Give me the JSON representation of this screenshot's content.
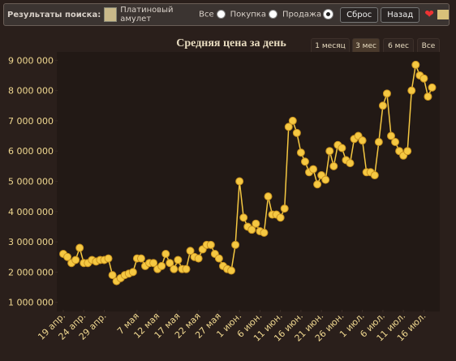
{
  "toolbar": {
    "label": "Результаты поиска:",
    "item": "Платиновый амулет",
    "filters": [
      {
        "label": "Все",
        "selected": false
      },
      {
        "label": "Покупка",
        "selected": false
      },
      {
        "label": "Продажа",
        "selected": true
      }
    ],
    "buttons": [
      "Сброс",
      "Назад"
    ]
  },
  "range_selector": {
    "buttons": [
      "1 месяц",
      "3 мес",
      "6 мес",
      "Все"
    ],
    "active": 1
  },
  "chart_data": {
    "type": "line",
    "title": "Средняя цена за день",
    "color": "#f5c842",
    "categories": [
      "19 апр.",
      null,
      null,
      null,
      null,
      "24 апр.",
      null,
      null,
      null,
      null,
      "29 апр.",
      null,
      null,
      null,
      null,
      null,
      null,
      null,
      "7 мая",
      null,
      null,
      null,
      null,
      "12 мая",
      null,
      null,
      null,
      null,
      "17 мая",
      null,
      null,
      null,
      null,
      "22 мая",
      null,
      null,
      null,
      null,
      "27 мая",
      null,
      null,
      null,
      null,
      "1 июн.",
      null,
      null,
      null,
      null,
      "6 июн.",
      null,
      null,
      null,
      null,
      "11 июн.",
      null,
      null,
      null,
      null,
      "16 июн.",
      null,
      null,
      null,
      null,
      "21 июн.",
      null,
      null,
      null,
      null,
      "26 июн.",
      null,
      null,
      null,
      null,
      "1 июл.",
      null,
      null,
      null,
      null,
      "6 июл.",
      null,
      null,
      null,
      null,
      "11 июл.",
      null,
      null,
      null,
      null,
      "16 июл.",
      null,
      null
    ],
    "values": [
      2600000,
      2500000,
      2300000,
      2400000,
      2800000,
      2300000,
      2300000,
      2400000,
      2350000,
      2400000,
      2400000,
      2450000,
      1900000,
      1700000,
      1800000,
      1900000,
      1950000,
      2000000,
      2450000,
      2450000,
      2200000,
      2300000,
      2300000,
      2100000,
      2200000,
      2600000,
      2300000,
      2100000,
      2400000,
      2100000,
      2100000,
      2700000,
      2500000,
      2450000,
      2750000,
      2900000,
      2900000,
      2600000,
      2450000,
      2200000,
      2100000,
      2050000,
      2900000,
      5000000,
      3800000,
      3500000,
      3400000,
      3600000,
      3350000,
      3300000,
      4500000,
      3900000,
      3900000,
      3800000,
      4100000,
      6800000,
      7000000,
      6600000,
      5950000,
      5650000,
      5300000,
      5400000,
      4900000,
      5200000,
      5050000,
      6000000,
      5500000,
      6200000,
      6100000,
      5700000,
      5600000,
      6400000,
      6500000,
      6350000,
      5300000,
      5300000,
      5200000,
      6300000,
      7500000,
      7900000,
      6500000,
      6300000,
      6000000,
      5850000,
      6000000,
      8000000,
      8850000,
      8500000,
      8400000,
      7800000,
      8100000
    ],
    "ylim": [
      750000,
      9250000
    ],
    "yticks": [
      {
        "value": 1000000,
        "label": "1 000 000"
      },
      {
        "value": 2000000,
        "label": "2 000 000"
      },
      {
        "value": 3000000,
        "label": "3 000 000"
      },
      {
        "value": 4000000,
        "label": "4 000 000"
      },
      {
        "value": 5000000,
        "label": "5 000 000"
      },
      {
        "value": 6000000,
        "label": "6 000 000"
      },
      {
        "value": 7000000,
        "label": "7 000 000"
      },
      {
        "value": 8000000,
        "label": "8 000 000"
      },
      {
        "value": 9000000,
        "label": "9 000 000"
      }
    ]
  }
}
